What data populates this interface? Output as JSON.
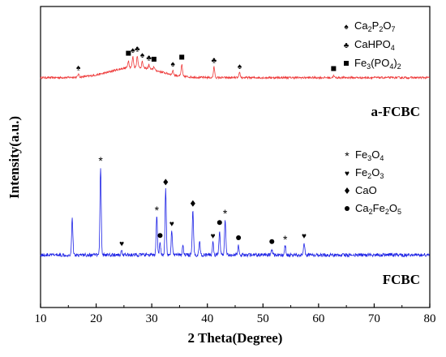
{
  "chart_data": {
    "type": "line",
    "xlabel": "2 Theta(Degree)",
    "ylabel": "Intensity(a.u.)",
    "xlim": [
      10,
      80
    ],
    "x_ticks": [
      10,
      20,
      30,
      40,
      50,
      60,
      70,
      80
    ],
    "y_ticks_shown": false,
    "grid": false,
    "colors": {
      "a_FCBC": "#ee3b3b",
      "FCBC": "#1f24e6"
    },
    "series": [
      {
        "name": "a-FCBC",
        "baseline": 0.6,
        "noise": 0.35,
        "hump": {
          "center": 27,
          "height": 1.8,
          "width": 6
        },
        "peaks": [
          {
            "x": 16.8,
            "h": 0.5
          },
          {
            "x": 25.8,
            "h": 1.2
          },
          {
            "x": 26.6,
            "h": 1.8
          },
          {
            "x": 27.4,
            "h": 2.0
          },
          {
            "x": 28.3,
            "h": 1.0
          },
          {
            "x": 29.5,
            "h": 0.7
          },
          {
            "x": 30.4,
            "h": 0.6
          },
          {
            "x": 33.8,
            "h": 0.7
          },
          {
            "x": 35.4,
            "h": 2.0
          },
          {
            "x": 41.2,
            "h": 1.8
          },
          {
            "x": 45.8,
            "h": 0.8
          },
          {
            "x": 62.7,
            "h": 0.3
          }
        ]
      },
      {
        "name": "FCBC",
        "baseline": 0.4,
        "noise": 0.45,
        "peaks": [
          {
            "x": 15.7,
            "h": 4.8
          },
          {
            "x": 20.8,
            "h": 11.5
          },
          {
            "x": 24.6,
            "h": 0.6
          },
          {
            "x": 30.9,
            "h": 5.0
          },
          {
            "x": 31.5,
            "h": 1.6
          },
          {
            "x": 32.5,
            "h": 8.6
          },
          {
            "x": 33.6,
            "h": 3.2
          },
          {
            "x": 35.6,
            "h": 1.2
          },
          {
            "x": 37.4,
            "h": 5.8
          },
          {
            "x": 38.6,
            "h": 1.8
          },
          {
            "x": 41.0,
            "h": 1.6
          },
          {
            "x": 42.2,
            "h": 3.3
          },
          {
            "x": 43.2,
            "h": 4.6
          },
          {
            "x": 45.6,
            "h": 1.3
          },
          {
            "x": 51.6,
            "h": 0.8
          },
          {
            "x": 54.0,
            "h": 1.2
          },
          {
            "x": 57.4,
            "h": 1.6
          }
        ]
      }
    ],
    "series_labels": {
      "a_FCBC": "a-FCBC",
      "FCBC": "FCBC"
    },
    "markers": [
      {
        "series": "a-FCBC",
        "x": 16.8,
        "phase": "spade"
      },
      {
        "series": "a-FCBC",
        "x": 25.8,
        "phase": "square"
      },
      {
        "series": "a-FCBC",
        "x": 26.6,
        "phase": "spade"
      },
      {
        "series": "a-FCBC",
        "x": 27.4,
        "phase": "club"
      },
      {
        "series": "a-FCBC",
        "x": 28.3,
        "phase": "spade"
      },
      {
        "series": "a-FCBC",
        "x": 29.5,
        "phase": "club"
      },
      {
        "series": "a-FCBC",
        "x": 30.4,
        "phase": "square"
      },
      {
        "series": "a-FCBC",
        "x": 33.8,
        "phase": "spade"
      },
      {
        "series": "a-FCBC",
        "x": 35.4,
        "phase": "square"
      },
      {
        "series": "a-FCBC",
        "x": 41.2,
        "phase": "club"
      },
      {
        "series": "a-FCBC",
        "x": 45.8,
        "phase": "spade"
      },
      {
        "series": "a-FCBC",
        "x": 62.7,
        "phase": "square"
      },
      {
        "series": "FCBC",
        "x": 20.8,
        "phase": "asterisk"
      },
      {
        "series": "FCBC",
        "x": 24.6,
        "phase": "heart"
      },
      {
        "series": "FCBC",
        "x": 30.9,
        "phase": "asterisk"
      },
      {
        "series": "FCBC",
        "x": 31.5,
        "phase": "dot"
      },
      {
        "series": "FCBC",
        "x": 32.5,
        "phase": "diamond"
      },
      {
        "series": "FCBC",
        "x": 33.6,
        "phase": "heart"
      },
      {
        "series": "FCBC",
        "x": 37.4,
        "phase": "diamond"
      },
      {
        "series": "FCBC",
        "x": 41.0,
        "phase": "heart"
      },
      {
        "series": "FCBC",
        "x": 42.2,
        "phase": "dot"
      },
      {
        "series": "FCBC",
        "x": 43.2,
        "phase": "asterisk"
      },
      {
        "series": "FCBC",
        "x": 45.6,
        "phase": "dot"
      },
      {
        "series": "FCBC",
        "x": 51.6,
        "phase": "dot"
      },
      {
        "series": "FCBC",
        "x": 54.0,
        "phase": "asterisk"
      },
      {
        "series": "FCBC",
        "x": 57.4,
        "phase": "heart"
      }
    ],
    "legend_top": [
      {
        "symbol": "spade",
        "base": [
          "Ca",
          "2",
          "P",
          "2",
          "O",
          "7"
        ]
      },
      {
        "symbol": "club",
        "base": [
          "CaHPO",
          "4"
        ]
      },
      {
        "symbol": "square",
        "base": [
          "Fe",
          "3",
          "(PO",
          "4",
          ")",
          "2"
        ]
      }
    ],
    "legend_bottom": [
      {
        "symbol": "asterisk",
        "base": [
          "Fe",
          "3",
          "O",
          "4"
        ]
      },
      {
        "symbol": "heart",
        "base": [
          "Fe",
          "2",
          "O",
          "3"
        ]
      },
      {
        "symbol": "diamond",
        "base": [
          "CaO"
        ]
      },
      {
        "symbol": "dot",
        "base": [
          "Ca",
          "2",
          "Fe",
          "2",
          "O",
          "5"
        ]
      }
    ],
    "legend_placement": "top-right"
  }
}
